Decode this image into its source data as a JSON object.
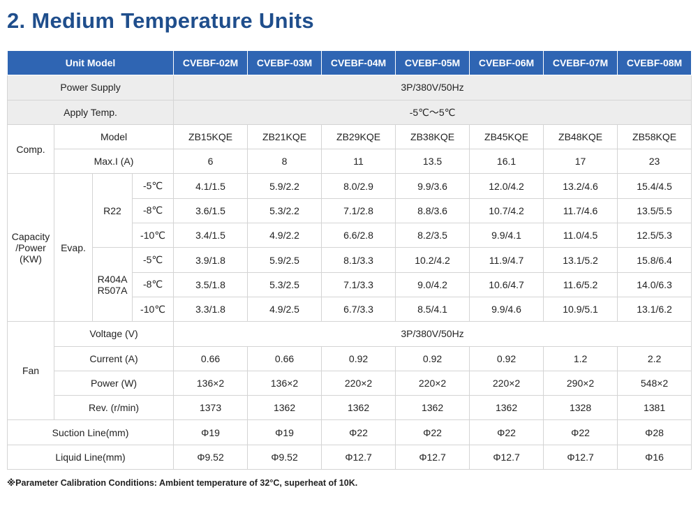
{
  "title": "2. Medium Temperature Units",
  "header": {
    "label": "Unit Model",
    "models": [
      "CVEBF-02M",
      "CVEBF-03M",
      "CVEBF-04M",
      "CVEBF-05M",
      "CVEBF-06M",
      "CVEBF-07M",
      "CVEBF-08M"
    ]
  },
  "power_supply": {
    "label": "Power Supply",
    "value": "3P/380V/50Hz"
  },
  "apply_temp": {
    "label": "Apply Temp.",
    "value": "-5℃～5℃"
  },
  "comp": {
    "label": "Comp.",
    "model": {
      "label": "Model",
      "values": [
        "ZB15KQE",
        "ZB21KQE",
        "ZB29KQE",
        "ZB38KQE",
        "ZB45KQE",
        "ZB48KQE",
        "ZB58KQE"
      ]
    },
    "maxi": {
      "label": "Max.I (A)",
      "values": [
        "6",
        "8",
        "11",
        "13.5",
        "16.1",
        "17",
        "23"
      ]
    }
  },
  "capacity": {
    "label_line1": "Capacity",
    "label_line2": "/Power",
    "label_line3": "(KW)",
    "evap_label": "Evap.",
    "groups": [
      {
        "refrigerant_line1": "R22",
        "refrigerant_line2": "",
        "rows": [
          {
            "temp": "-5℃",
            "values": [
              "4.1/1.5",
              "5.9/2.2",
              "8.0/2.9",
              "9.9/3.6",
              "12.0/4.2",
              "13.2/4.6",
              "15.4/4.5"
            ]
          },
          {
            "temp": "-8℃",
            "values": [
              "3.6/1.5",
              "5.3/2.2",
              "7.1/2.8",
              "8.8/3.6",
              "10.7/4.2",
              "11.7/4.6",
              "13.5/5.5"
            ]
          },
          {
            "temp": "-10℃",
            "values": [
              "3.4/1.5",
              "4.9/2.2",
              "6.6/2.8",
              "8.2/3.5",
              "9.9/4.1",
              "11.0/4.5",
              "12.5/5.3"
            ]
          }
        ]
      },
      {
        "refrigerant_line1": "R404A",
        "refrigerant_line2": "R507A",
        "rows": [
          {
            "temp": "-5℃",
            "values": [
              "3.9/1.8",
              "5.9/2.5",
              "8.1/3.3",
              "10.2/4.2",
              "11.9/4.7",
              "13.1/5.2",
              "15.8/6.4"
            ]
          },
          {
            "temp": "-8℃",
            "values": [
              "3.5/1.8",
              "5.3/2.5",
              "7.1/3.3",
              "9.0/4.2",
              "10.6/4.7",
              "11.6/5.2",
              "14.0/6.3"
            ]
          },
          {
            "temp": "-10℃",
            "values": [
              "3.3/1.8",
              "4.9/2.5",
              "6.7/3.3",
              "8.5/4.1",
              "9.9/4.6",
              "10.9/5.1",
              "13.1/6.2"
            ]
          }
        ]
      }
    ]
  },
  "fan": {
    "label": "Fan",
    "voltage": {
      "label": "Voltage (V)",
      "value": "3P/380V/50Hz"
    },
    "current": {
      "label": "Current (A)",
      "values": [
        "0.66",
        "0.66",
        "0.92",
        "0.92",
        "0.92",
        "1.2",
        "2.2"
      ]
    },
    "power": {
      "label": "Power (W)",
      "values": [
        "136×2",
        "136×2",
        "220×2",
        "220×2",
        "220×2",
        "290×2",
        "548×2"
      ]
    },
    "rev": {
      "label": "Rev. (r/min)",
      "values": [
        "1373",
        "1362",
        "1362",
        "1362",
        "1362",
        "1328",
        "1381"
      ]
    }
  },
  "suction": {
    "label": "Suction Line(mm)",
    "values": [
      "Φ19",
      "Φ19",
      "Φ22",
      "Φ22",
      "Φ22",
      "Φ22",
      "Φ28"
    ]
  },
  "liquid": {
    "label": "Liquid Line(mm)",
    "values": [
      "Φ9.52",
      "Φ9.52",
      "Φ12.7",
      "Φ12.7",
      "Φ12.7",
      "Φ12.7",
      "Φ16"
    ]
  },
  "footnote": "※Parameter Calibration Conditions: Ambient temperature of 32°C, superheat of 10K."
}
